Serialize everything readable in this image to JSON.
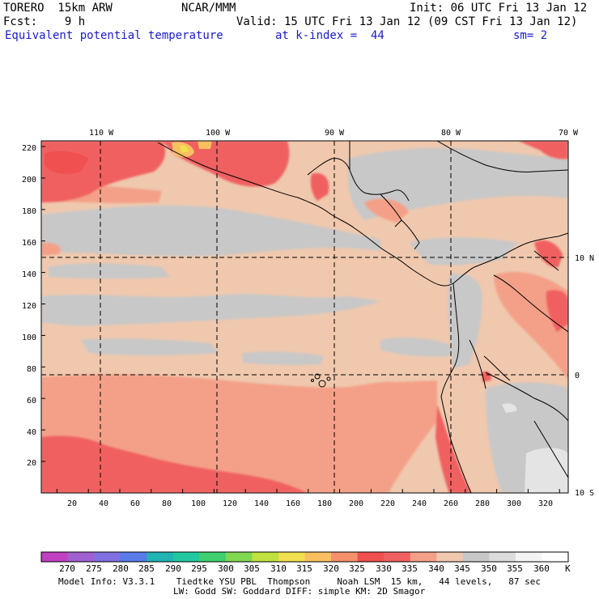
{
  "header": {
    "model": "TORERO  15km ARW",
    "center": "NCAR/MMM",
    "init": "Init: 06 UTC Fri 13 Jan 12",
    "fcst": "Fcst:    9 h",
    "valid": "Valid: 15 UTC Fri 13 Jan 12 (09 CST Fri 13 Jan 12)",
    "field": "Equivalent potential temperature",
    "level": "at k-index =  44",
    "smooth": "sm= 2"
  },
  "map": {
    "lon_labels": [
      "110 W",
      "100 W",
      "90 W",
      "80 W",
      "70 W"
    ],
    "lat_labels": [
      "10 N",
      "0",
      "10 S"
    ],
    "x_ticks": [
      "20",
      "40",
      "60",
      "80",
      "100",
      "120",
      "140",
      "160",
      "180",
      "200",
      "220",
      "240",
      "260",
      "280",
      "300",
      "320"
    ],
    "y_ticks": [
      "20",
      "40",
      "60",
      "80",
      "100",
      "120",
      "140",
      "160",
      "180",
      "200",
      "220"
    ]
  },
  "colorbar": {
    "labels": [
      "270",
      "275",
      "280",
      "285",
      "290",
      "295",
      "300",
      "305",
      "310",
      "315",
      "320",
      "325",
      "330",
      "335",
      "340",
      "345",
      "350",
      "355",
      "360"
    ],
    "unit": "K",
    "colors": [
      "#c040c0",
      "#a060d0",
      "#8070e0",
      "#5a7ae8",
      "#20b4b4",
      "#20c8a0",
      "#40d070",
      "#80d850",
      "#c0e040",
      "#f0e050",
      "#f8c060",
      "#f4906a",
      "#f05050",
      "#f06060",
      "#f4a088",
      "#efc8ae",
      "#c8c8c8",
      "#dcdcdc",
      "#f4f4f4",
      "#ffffff"
    ]
  },
  "footer": {
    "line1": "Model Info: V3.3.1    Tiedtke YSU PBL  Thompson     Noah LSM  15 km,   44 levels,   87 sec",
    "line2": "LW: Godd SW: Goddard DIFF: simple KM: 2D Smagor"
  }
}
